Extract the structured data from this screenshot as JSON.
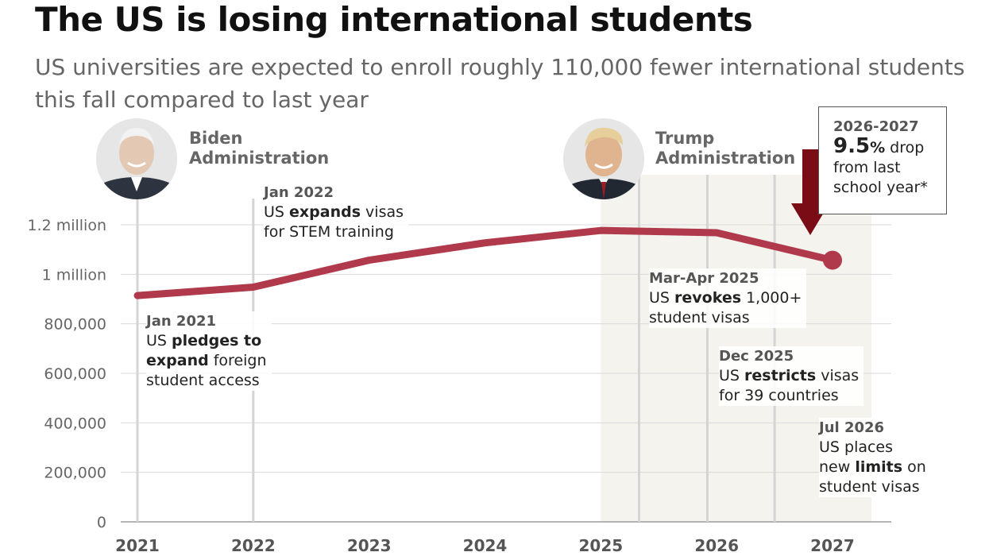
{
  "title": "The US is losing international students",
  "subtitle": "US universities are expected to enroll roughly 110,000 fewer international students this fall compared to last year",
  "administrations": [
    {
      "line1": "Biden",
      "line2": "Administration"
    },
    {
      "line1": "Trump",
      "line2": "Administration"
    }
  ],
  "callout": {
    "period": "2026-2027",
    "pct": "9.5",
    "pct_sign": "%",
    "text1": " drop",
    "text2": "from last",
    "text3": "school year*"
  },
  "events": [
    {
      "date": "Jan 2021",
      "lines": [
        [
          {
            "t": "US "
          },
          {
            "t": "pledges to",
            "b": true
          }
        ],
        [
          {
            "t": "expand",
            "b": true
          },
          {
            "t": " foreign"
          }
        ],
        [
          {
            "t": "student access"
          }
        ]
      ]
    },
    {
      "date": "Jan 2022",
      "lines": [
        [
          {
            "t": "US "
          },
          {
            "t": "expands",
            "b": true
          },
          {
            "t": " visas"
          }
        ],
        [
          {
            "t": "for STEM training"
          }
        ]
      ]
    },
    {
      "date": "Mar-Apr 2025",
      "lines": [
        [
          {
            "t": "US "
          },
          {
            "t": "revokes",
            "b": true
          },
          {
            "t": " 1,000+"
          }
        ],
        [
          {
            "t": "student visas"
          }
        ]
      ]
    },
    {
      "date": "Dec 2025",
      "lines": [
        [
          {
            "t": "US "
          },
          {
            "t": "restricts",
            "b": true
          },
          {
            "t": " visas"
          }
        ],
        [
          {
            "t": "for 39 countries"
          }
        ]
      ]
    },
    {
      "date": "Jul 2026",
      "lines": [
        [
          {
            "t": "US places"
          }
        ],
        [
          {
            "t": "new "
          },
          {
            "t": "limits",
            "b": true
          },
          {
            "t": " on"
          }
        ],
        [
          {
            "t": "student visas"
          }
        ]
      ]
    }
  ],
  "colors": {
    "line": "#b03a4c",
    "arrow": "#7a0c16",
    "trump_shade": "#f4f3ee",
    "grid": "#d9d9d9",
    "event_line": "#d4d4d4"
  },
  "chart_data": {
    "type": "line",
    "title": "The US is losing international students",
    "subtitle": "US universities are expected to enroll roughly 110,000 fewer international students this fall compared to last year",
    "xlabel": "",
    "ylabel": "",
    "x_ticks": [
      "2021",
      "2022",
      "2023",
      "2024",
      "2025",
      "2026",
      "2027"
    ],
    "y_ticks": [
      "0",
      "200,000",
      "400,000",
      "600,000",
      "800,000",
      "1 million",
      "1.2 million"
    ],
    "y_tick_values": [
      0,
      200000,
      400000,
      600000,
      800000,
      1000000,
      1200000
    ],
    "ylim": [
      0,
      1200000
    ],
    "xlim": [
      2021,
      2027
    ],
    "grid": true,
    "series": [
      {
        "x": [
          2021,
          2022,
          2023,
          2024,
          2025,
          2026,
          2027
        ],
        "values": [
          914000,
          948000,
          1057000,
          1127000,
          1177000,
          1168000,
          1057000
        ]
      }
    ],
    "shaded_period": [
      2025,
      2027.5
    ],
    "events": [
      {
        "label": "Jan 2021",
        "x": 2021.0
      },
      {
        "label": "Jan 2022",
        "x": 2022.0
      },
      {
        "label": "Mar-Apr 2025",
        "x": 2025.33
      },
      {
        "label": "Dec 2025",
        "x": 2025.92
      },
      {
        "label": "Jul 2026",
        "x": 2026.5
      }
    ]
  }
}
